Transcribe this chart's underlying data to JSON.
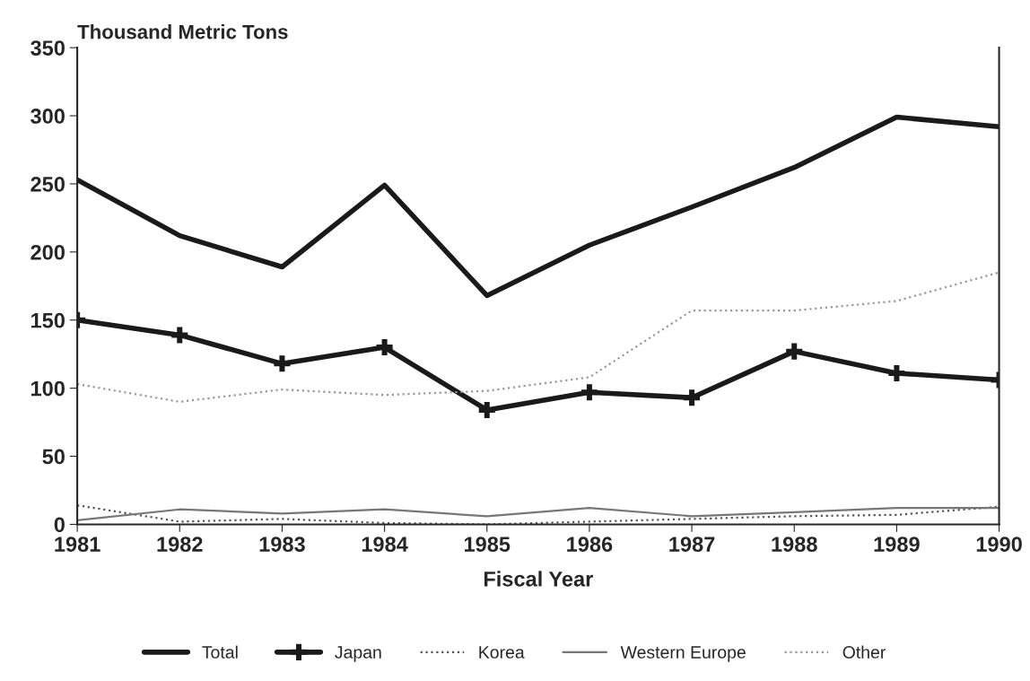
{
  "chart_data": {
    "type": "line",
    "ylabel": "Thousand Metric Tons",
    "xlabel": "Fiscal Year",
    "x": [
      1981,
      1982,
      1983,
      1984,
      1985,
      1986,
      1987,
      1988,
      1989,
      1990
    ],
    "xlim": [
      1981,
      1990
    ],
    "xticks": [
      1981,
      1982,
      1983,
      1984,
      1985,
      1986,
      1987,
      1988,
      1989,
      1990
    ],
    "ylim": [
      0,
      350
    ],
    "yticks": [
      0,
      50,
      100,
      150,
      200,
      250,
      300,
      350
    ],
    "grid": false,
    "legend": "bottom",
    "series": [
      {
        "name": "Total",
        "color": "#1a1a1a",
        "line_style": "solid",
        "values": [
          253,
          212,
          189,
          249,
          168,
          205,
          233,
          262,
          299,
          292
        ]
      },
      {
        "name": "Japan",
        "color": "#1a1a1a",
        "line_style": "solid",
        "marker": "cross",
        "values": [
          150,
          139,
          118,
          130,
          84,
          97,
          93,
          127,
          111,
          106
        ]
      },
      {
        "name": "Korea",
        "color": "#555555",
        "line_style": "dotted",
        "values": [
          14,
          2,
          4,
          1,
          0,
          2,
          4,
          6,
          7,
          13
        ]
      },
      {
        "name": "Western Europe",
        "color": "#777777",
        "line_style": "solid",
        "values": [
          3,
          11,
          8,
          11,
          6,
          12,
          6,
          9,
          12,
          12
        ]
      },
      {
        "name": "Other",
        "color": "#999999",
        "line_style": "dotted",
        "values": [
          103,
          90,
          99,
          95,
          98,
          108,
          157,
          157,
          164,
          185
        ]
      }
    ]
  }
}
